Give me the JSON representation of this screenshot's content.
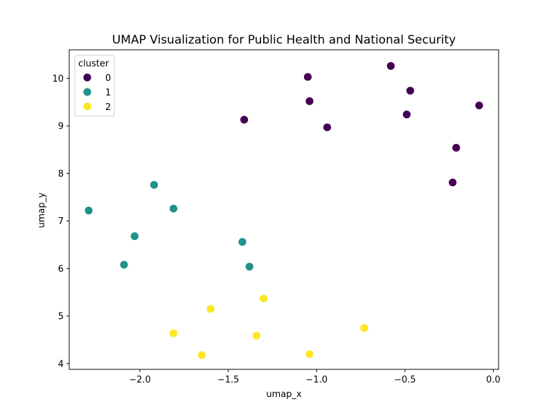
{
  "chart_data": {
    "type": "scatter",
    "title": "UMAP Visualization for Public Health and National Security",
    "xlabel": "umap_x",
    "ylabel": "umap_y",
    "xlim": [
      -2.4,
      0.03
    ],
    "ylim": [
      3.88,
      10.6
    ],
    "xticks": [
      -2.0,
      -1.5,
      -1.0,
      -0.5,
      0.0
    ],
    "xtick_labels": [
      "−2.0",
      "−1.5",
      "−1.0",
      "−0.5",
      "0.0"
    ],
    "yticks": [
      4,
      5,
      6,
      7,
      8,
      9,
      10
    ],
    "ytick_labels": [
      "4",
      "5",
      "6",
      "7",
      "8",
      "9",
      "10"
    ],
    "grid": false,
    "legend": {
      "title": "cluster",
      "placement": "top-left"
    },
    "series": [
      {
        "name": "0",
        "color": "#440154",
        "points": [
          {
            "x": -1.41,
            "y": 9.13
          },
          {
            "x": -1.05,
            "y": 10.03
          },
          {
            "x": -1.04,
            "y": 9.52
          },
          {
            "x": -0.94,
            "y": 8.97
          },
          {
            "x": -0.58,
            "y": 10.26
          },
          {
            "x": -0.47,
            "y": 9.74
          },
          {
            "x": -0.49,
            "y": 9.24
          },
          {
            "x": -0.08,
            "y": 9.43
          },
          {
            "x": -0.21,
            "y": 8.54
          },
          {
            "x": -0.23,
            "y": 7.81
          }
        ]
      },
      {
        "name": "1",
        "color": "#21918c",
        "points": [
          {
            "x": -2.29,
            "y": 7.22
          },
          {
            "x": -1.92,
            "y": 7.76
          },
          {
            "x": -1.81,
            "y": 7.26
          },
          {
            "x": -2.03,
            "y": 6.68
          },
          {
            "x": -2.09,
            "y": 6.08
          },
          {
            "x": -1.42,
            "y": 6.56
          },
          {
            "x": -1.38,
            "y": 6.04
          }
        ]
      },
      {
        "name": "2",
        "color": "#fde725",
        "points": [
          {
            "x": -1.6,
            "y": 5.15
          },
          {
            "x": -1.3,
            "y": 5.37
          },
          {
            "x": -0.73,
            "y": 4.75
          },
          {
            "x": -1.81,
            "y": 4.64
          },
          {
            "x": -1.34,
            "y": 4.59
          },
          {
            "x": -1.65,
            "y": 4.18
          },
          {
            "x": -1.04,
            "y": 4.2
          }
        ]
      }
    ]
  }
}
